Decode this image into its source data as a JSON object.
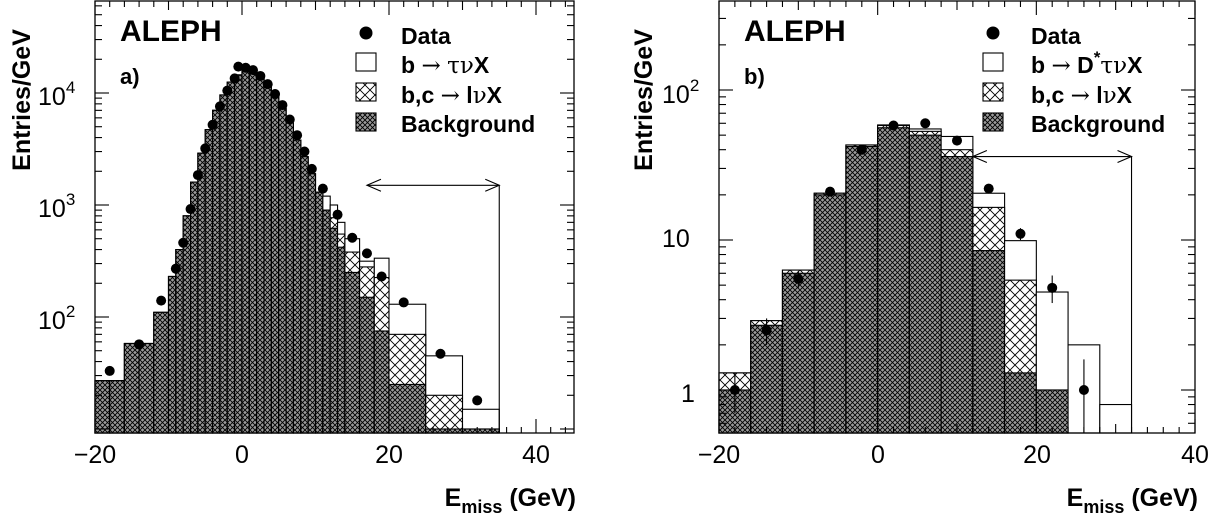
{
  "figure": {
    "panels": [
      {
        "id": "a",
        "experiment": "ALEPH",
        "panel_label": "a)",
        "y_label": "Entries/GeV",
        "x_label_main": "E",
        "x_label_sub": "miss",
        "x_label_unit": " (GeV)",
        "legend": [
          {
            "symbol": "dot",
            "text": "Data"
          },
          {
            "symbol": "open",
            "parts": [
              "b ",
              "→",
              " ",
              "τν",
              "X"
            ]
          },
          {
            "symbol": "hatch",
            "parts": [
              "b,c ",
              "→",
              " l",
              "ν",
              "X"
            ]
          },
          {
            "symbol": "cross",
            "parts": [
              "Background"
            ]
          }
        ],
        "x_ticks": [
          "−20",
          "0",
          "20",
          "40"
        ],
        "y_ticks": [
          {
            "base": "10",
            "exp": "2"
          },
          {
            "base": "10",
            "exp": "3"
          },
          {
            "base": "10",
            "exp": "4"
          }
        ]
      },
      {
        "id": "b",
        "experiment": "ALEPH",
        "panel_label": "b)",
        "y_label": "Entries/GeV",
        "x_label_main": "E",
        "x_label_sub": "miss",
        "x_label_unit": " (GeV)",
        "legend": [
          {
            "symbol": "dot",
            "text": "Data"
          },
          {
            "symbol": "open",
            "parts": [
              "b ",
              "→",
              " D",
              "*",
              "τν",
              "X"
            ]
          },
          {
            "symbol": "hatch",
            "parts": [
              "b,c ",
              "→",
              " l",
              "ν",
              "X"
            ]
          },
          {
            "symbol": "cross",
            "parts": [
              "Background"
            ]
          }
        ],
        "x_ticks": [
          "−20",
          "0",
          "20",
          "40"
        ],
        "y_ticks": [
          {
            "base": "1",
            "exp": ""
          },
          {
            "base": "10",
            "exp": ""
          },
          {
            "base": "10",
            "exp": "2"
          }
        ]
      }
    ]
  },
  "chart_data": [
    {
      "type": "histogram",
      "title": "ALEPH a)",
      "xlabel": "Emiss (GeV)",
      "ylabel": "Entries/GeV",
      "xlim": [
        -20,
        45
      ],
      "ylim": [
        12,
        80000
      ],
      "log_y": true,
      "grid": false,
      "legend_position": "top-right",
      "bin_edges": [
        -20,
        -18,
        -16,
        -14,
        -12,
        -10,
        -9,
        -8,
        -7,
        -6,
        -5,
        -4,
        -3,
        -2,
        -1,
        0,
        1,
        2,
        3,
        4,
        5,
        6,
        7,
        8,
        9,
        10,
        11,
        12,
        13,
        14,
        16,
        18,
        20,
        25,
        30,
        35
      ],
      "stacks": {
        "Background": [
          27,
          27,
          58,
          58,
          110,
          230,
          400,
          800,
          1600,
          2900,
          4700,
          7000,
          9600,
          12500,
          14500,
          16000,
          15500,
          14000,
          12000,
          9500,
          7300,
          5400,
          3800,
          2700,
          1900,
          1300,
          900,
          620,
          420,
          250,
          150,
          75,
          25,
          10,
          10
        ],
        "b,c → lνX": [
          0,
          0,
          0,
          0,
          0,
          0,
          0,
          0,
          0,
          0,
          0,
          0,
          0,
          0,
          0,
          0,
          0,
          0,
          0,
          0,
          0,
          0,
          0,
          0,
          0,
          0,
          0,
          150,
          130,
          130,
          130,
          150,
          45,
          10,
          0
        ],
        "b → τνX": [
          0,
          0,
          0,
          0,
          0,
          0,
          0,
          0,
          0,
          0,
          0,
          0,
          0,
          0,
          0,
          0,
          0,
          0,
          0,
          0,
          0,
          0,
          0,
          0,
          0,
          0,
          300,
          230,
          150,
          120,
          35,
          110,
          60,
          25,
          5
        ]
      },
      "data": {
        "x": [
          -18,
          -14,
          -11,
          -9,
          -8,
          -7,
          -6,
          -5,
          -4,
          -3,
          -2,
          -1,
          -0.5,
          0.5,
          1.5,
          2.5,
          3.5,
          4.5,
          5.5,
          6.5,
          7.5,
          8.5,
          9.5,
          11,
          13,
          15,
          17,
          19,
          22,
          27,
          32
        ],
        "y": [
          33,
          57,
          140,
          270,
          460,
          920,
          1850,
          3200,
          5200,
          7600,
          10500,
          13500,
          17200,
          16800,
          16000,
          14200,
          12000,
          9800,
          7800,
          5800,
          4200,
          3000,
          2100,
          1400,
          820,
          510,
          370,
          230,
          135,
          47,
          18
        ]
      },
      "annotation": {
        "type": "double-arrow",
        "x_from": 17,
        "x_to": 35,
        "y": 1500
      }
    },
    {
      "type": "histogram",
      "title": "ALEPH b)",
      "xlabel": "Emiss (GeV)",
      "ylabel": "Entries/GeV",
      "xlim": [
        -20,
        40
      ],
      "ylim": [
        0.6,
        300
      ],
      "log_y": true,
      "grid": false,
      "legend_position": "top-right",
      "bin_edges": [
        -20,
        -16,
        -12,
        -8,
        -4,
        0,
        4,
        8,
        12,
        16,
        20,
        24,
        28,
        32
      ],
      "stacks": {
        "Background": [
          1.0,
          2.7,
          6.0,
          20,
          42,
          56,
          50,
          36,
          8.5,
          1.3,
          1.0,
          0,
          0
        ],
        "b,c → lνX": [
          0.3,
          0.2,
          0.3,
          0.5,
          1.0,
          2.0,
          3.0,
          4.0,
          8.0,
          4.1,
          0,
          0,
          0
        ],
        "b → τνX": [
          0,
          0,
          0,
          0,
          0,
          0.5,
          2.0,
          9.0,
          4.0,
          4.5,
          3.5,
          2.0,
          0.8
        ]
      },
      "data": {
        "x": [
          -18,
          -14,
          -10,
          -6,
          -2,
          2,
          6,
          10,
          14,
          18,
          22,
          26
        ],
        "y": [
          1.0,
          2.5,
          5.5,
          21,
          40,
          58,
          60,
          46,
          22,
          11,
          4.8,
          1.0
        ],
        "err": [
          0.3,
          0.5,
          0.7,
          1.4,
          1.7,
          2.0,
          2.0,
          1.8,
          1.4,
          1.0,
          1.0,
          0.6
        ]
      },
      "annotation": {
        "type": "double-arrow",
        "x_from": 12,
        "x_to": 32,
        "y": 36
      }
    }
  ]
}
